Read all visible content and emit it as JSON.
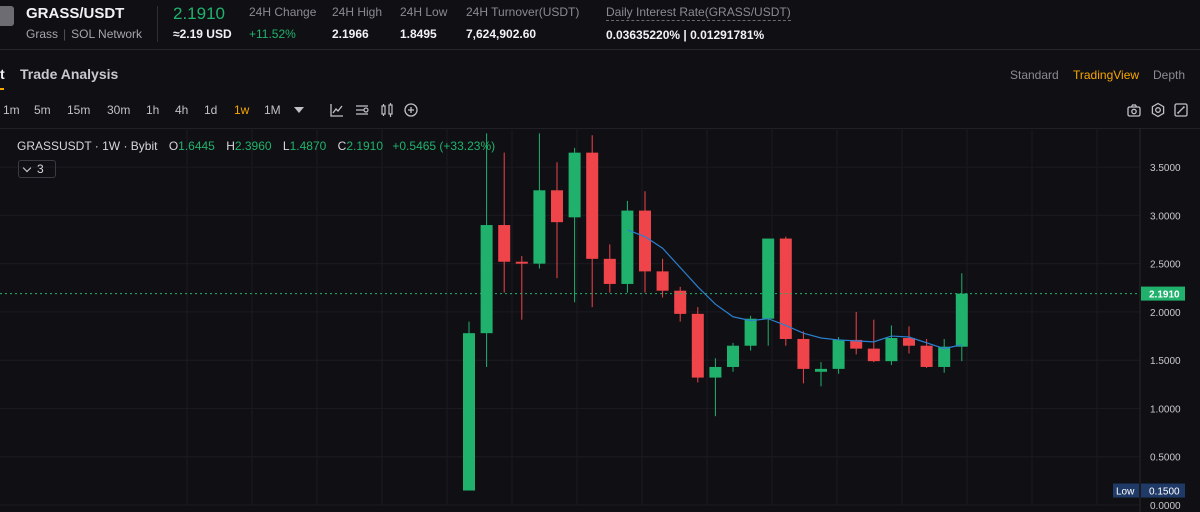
{
  "header": {
    "pair": "GRASS/USDT",
    "tags": [
      "Grass",
      "SOL Network"
    ],
    "last_price": "2.1910",
    "usd_price": "≈2.19 USD",
    "stats": [
      {
        "label": "24H Change",
        "value": "+11.52%",
        "green": true
      },
      {
        "label": "24H High",
        "value": "2.1966"
      },
      {
        "label": "24H Low",
        "value": "1.8495"
      },
      {
        "label": "24H Turnover(USDT)",
        "value": "7,624,902.60"
      },
      {
        "label": "Daily Interest Rate(GRASS/USDT)",
        "value": "0.03635220% | 0.01291781%"
      }
    ]
  },
  "tabs": {
    "first": "t",
    "second": "Trade Analysis"
  },
  "views": [
    "Standard",
    "TradingView",
    "Depth"
  ],
  "active_view": "TradingView",
  "timeframes": [
    "1m",
    "5m",
    "15m",
    "30m",
    "1h",
    "4h",
    "1d",
    "1w",
    "1M"
  ],
  "active_timeframe": "1w",
  "icons": [
    "dropdown-caret-icon",
    "indicators-icon",
    "chart-type-icon",
    "candles-icon",
    "add-icon",
    "camera-icon",
    "settings-icon",
    "fullscreen-icon"
  ],
  "legend": {
    "symbol": "GRASSUSDT · 1W · Bybit",
    "o_label": "O",
    "o": "1.6445",
    "h_label": "H",
    "h": "2.3960",
    "l_label": "L",
    "l": "1.4870",
    "c_label": "C",
    "c": "2.1910",
    "change": "+0.5465 (+33.23%)"
  },
  "indicator_count": "3",
  "price_axis": [
    "3.5000",
    "3.0000",
    "2.5000",
    "2.0000",
    "1.5000",
    "1.0000",
    "0.5000",
    "0.0000"
  ],
  "current_price_tag": "2.1910",
  "low_tag": {
    "label": "Low",
    "value": "0.1500"
  },
  "colors": {
    "up": "#20b26c",
    "down": "#ef454a",
    "accent": "#f7a600",
    "ma": "#2b7fcf",
    "bg": "#101014"
  },
  "chart_data": {
    "type": "candlestick",
    "timeframe": "1W",
    "ylim": [
      0,
      3.75
    ],
    "candles": [
      {
        "o": 0.15,
        "h": 1.9,
        "l": 0.15,
        "c": 1.78
      },
      {
        "o": 1.78,
        "h": 3.85,
        "l": 1.43,
        "c": 2.9
      },
      {
        "o": 2.9,
        "h": 3.65,
        "l": 2.2,
        "c": 2.52
      },
      {
        "o": 2.52,
        "h": 2.58,
        "l": 1.92,
        "c": 2.5
      },
      {
        "o": 2.5,
        "h": 3.85,
        "l": 2.45,
        "c": 3.26
      },
      {
        "o": 3.26,
        "h": 3.55,
        "l": 2.35,
        "c": 2.93
      },
      {
        "o": 2.98,
        "h": 3.7,
        "l": 2.1,
        "c": 3.65
      },
      {
        "o": 3.65,
        "h": 3.83,
        "l": 2.05,
        "c": 2.55
      },
      {
        "o": 2.55,
        "h": 2.7,
        "l": 2.2,
        "c": 2.29
      },
      {
        "o": 2.29,
        "h": 3.15,
        "l": 2.2,
        "c": 3.05
      },
      {
        "o": 3.05,
        "h": 3.25,
        "l": 2.2,
        "c": 2.42
      },
      {
        "o": 2.42,
        "h": 2.55,
        "l": 2.15,
        "c": 2.22
      },
      {
        "o": 2.22,
        "h": 2.26,
        "l": 1.9,
        "c": 1.98
      },
      {
        "o": 1.98,
        "h": 2.05,
        "l": 1.27,
        "c": 1.32
      },
      {
        "o": 1.32,
        "h": 1.52,
        "l": 0.92,
        "c": 1.43
      },
      {
        "o": 1.43,
        "h": 1.68,
        "l": 1.38,
        "c": 1.65
      },
      {
        "o": 1.65,
        "h": 1.96,
        "l": 1.6,
        "c": 1.93
      },
      {
        "o": 1.93,
        "h": 2.76,
        "l": 1.65,
        "c": 2.76
      },
      {
        "o": 2.76,
        "h": 2.78,
        "l": 1.65,
        "c": 1.72
      },
      {
        "o": 1.72,
        "h": 1.8,
        "l": 1.26,
        "c": 1.41
      },
      {
        "o": 1.38,
        "h": 1.48,
        "l": 1.23,
        "c": 1.41
      },
      {
        "o": 1.41,
        "h": 1.74,
        "l": 1.36,
        "c": 1.71
      },
      {
        "o": 1.71,
        "h": 2.0,
        "l": 1.56,
        "c": 1.62
      },
      {
        "o": 1.62,
        "h": 1.92,
        "l": 1.48,
        "c": 1.49
      },
      {
        "o": 1.49,
        "h": 1.86,
        "l": 1.45,
        "c": 1.73
      },
      {
        "o": 1.73,
        "h": 1.85,
        "l": 1.57,
        "c": 1.65
      },
      {
        "o": 1.65,
        "h": 1.72,
        "l": 1.42,
        "c": 1.43
      },
      {
        "o": 1.43,
        "h": 1.72,
        "l": 1.37,
        "c": 1.64
      },
      {
        "o": 1.64,
        "h": 2.4,
        "l": 1.49,
        "c": 2.19
      }
    ],
    "ma_line": [
      {
        "i": 9,
        "v": 2.85
      },
      {
        "i": 10,
        "v": 2.78
      },
      {
        "i": 11,
        "v": 2.66
      },
      {
        "i": 12,
        "v": 2.46
      },
      {
        "i": 13,
        "v": 2.26
      },
      {
        "i": 14,
        "v": 2.08
      },
      {
        "i": 15,
        "v": 1.95
      },
      {
        "i": 16,
        "v": 1.91
      },
      {
        "i": 17,
        "v": 1.93
      },
      {
        "i": 18,
        "v": 1.86
      },
      {
        "i": 19,
        "v": 1.78
      },
      {
        "i": 20,
        "v": 1.73
      },
      {
        "i": 21,
        "v": 1.71
      },
      {
        "i": 22,
        "v": 1.7
      },
      {
        "i": 23,
        "v": 1.69
      },
      {
        "i": 24,
        "v": 1.75
      },
      {
        "i": 25,
        "v": 1.74
      },
      {
        "i": 26,
        "v": 1.68
      },
      {
        "i": 27,
        "v": 1.62
      },
      {
        "i": 28,
        "v": 1.66
      }
    ]
  }
}
